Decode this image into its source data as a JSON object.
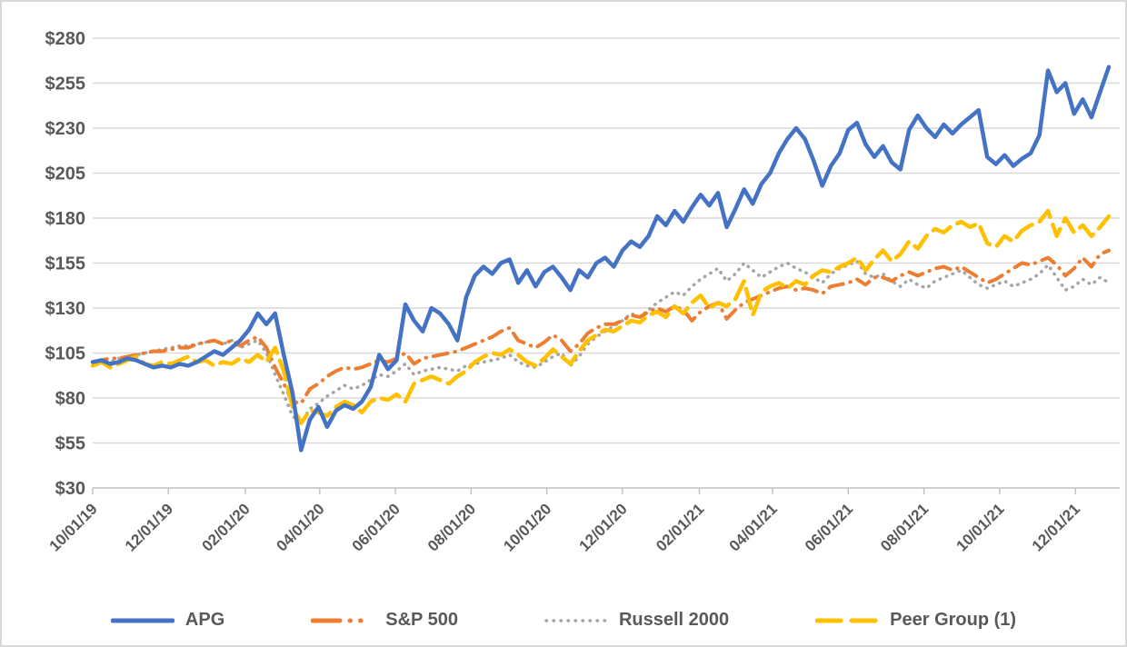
{
  "chart_data": {
    "type": "line",
    "title": "",
    "x_start_date": "10/01/19",
    "x_frequency": "weekly",
    "x_tick_labels": [
      "10/01/19",
      "12/01/19",
      "02/01/20",
      "04/01/20",
      "06/01/20",
      "08/01/20",
      "10/01/20",
      "12/01/20",
      "02/01/21",
      "04/01/21",
      "06/01/21",
      "08/01/21",
      "10/01/21",
      "12/01/21"
    ],
    "x_tick_day_offsets": [
      0,
      61,
      123,
      183,
      244,
      305,
      366,
      427,
      489,
      548,
      609,
      670,
      731,
      792
    ],
    "y_axis": {
      "min": 30,
      "max": 280,
      "step": 25,
      "prefix": "$",
      "tick_labels": [
        "$30",
        "$55",
        "$80",
        "$105",
        "$130",
        "$155",
        "$180",
        "$205",
        "$230",
        "$255",
        "$280"
      ],
      "tick_values": [
        30,
        55,
        80,
        105,
        130,
        155,
        180,
        205,
        230,
        255,
        280
      ]
    },
    "grid": "horizontal",
    "legend_position": "bottom",
    "axis_text_color": "#595959",
    "gridline_color": "#d9d9d9",
    "axis_line_color": "#bfbfbf",
    "series": [
      {
        "name": "APG",
        "color": "#4472C4",
        "style": "solid",
        "values": [
          100,
          101,
          99,
          100,
          102,
          101,
          99,
          97,
          98,
          97,
          99,
          98,
          100,
          103,
          106,
          104,
          108,
          112,
          118,
          127,
          121,
          127,
          104,
          83,
          51,
          68,
          75,
          64,
          73,
          76,
          74,
          78,
          86,
          104,
          96,
          101,
          132,
          123,
          117,
          130,
          127,
          121,
          112,
          136,
          148,
          153,
          149,
          155,
          157,
          144,
          151,
          142,
          150,
          153,
          147,
          140,
          151,
          147,
          155,
          158,
          153,
          162,
          167,
          164,
          170,
          181,
          176,
          184,
          178,
          186,
          193,
          187,
          194,
          175,
          185,
          196,
          188,
          199,
          205,
          216,
          224,
          230,
          224,
          212,
          198,
          209,
          216,
          229,
          233,
          221,
          214,
          220,
          211,
          207,
          229,
          237,
          230,
          225,
          232,
          227,
          232,
          236,
          240,
          214,
          210,
          215,
          209,
          213,
          216,
          226,
          262,
          250,
          255,
          238,
          246,
          236,
          250,
          264
        ]
      },
      {
        "name": "S&P 500",
        "color": "#ED7D31",
        "style": "dash-dot",
        "values": [
          100,
          101,
          102,
          102,
          103,
          104,
          105,
          106,
          106,
          107,
          108,
          108,
          110,
          111,
          112,
          110,
          112,
          109,
          112,
          114,
          108,
          97,
          88,
          78,
          77,
          85,
          88,
          92,
          95,
          97,
          96,
          97,
          99,
          101,
          100,
          102,
          105,
          99,
          102,
          103,
          104,
          105,
          106,
          108,
          110,
          112,
          114,
          117,
          119,
          112,
          110,
          108,
          111,
          115,
          112,
          106,
          110,
          116,
          119,
          121,
          121,
          123,
          126,
          125,
          128,
          130,
          128,
          131,
          129,
          123,
          128,
          131,
          133,
          124,
          129,
          133,
          135,
          137,
          139,
          141,
          142,
          140,
          141,
          140,
          138,
          142,
          143,
          144,
          146,
          143,
          147,
          147,
          145,
          148,
          150,
          148,
          150,
          152,
          153,
          151,
          153,
          150,
          147,
          144,
          146,
          149,
          152,
          155,
          154,
          156,
          158,
          154,
          148,
          152,
          158,
          153,
          160,
          162
        ]
      },
      {
        "name": "Russell 2000",
        "color": "#A5A5A5",
        "style": "dotted",
        "values": [
          100,
          101,
          100,
          102,
          103,
          104,
          105,
          106,
          107,
          108,
          109,
          109,
          110,
          111,
          112,
          110,
          112,
          108,
          110,
          112,
          105,
          93,
          82,
          70,
          66,
          74,
          77,
          81,
          84,
          87,
          85,
          87,
          90,
          93,
          92,
          95,
          99,
          93,
          95,
          96,
          97,
          96,
          95,
          98,
          99,
          100,
          101,
          102,
          104,
          100,
          98,
          97,
          100,
          103,
          105,
          98,
          103,
          110,
          114,
          117,
          120,
          123,
          127,
          125,
          129,
          133,
          136,
          139,
          137,
          142,
          146,
          149,
          152,
          145,
          149,
          155,
          151,
          147,
          150,
          153,
          155,
          152,
          150,
          147,
          144,
          149,
          152,
          154,
          156,
          149,
          147,
          149,
          145,
          142,
          146,
          143,
          141,
          145,
          147,
          149,
          151,
          147,
          143,
          141,
          143,
          145,
          142,
          144,
          146,
          149,
          154,
          147,
          140,
          142,
          146,
          143,
          147,
          144
        ]
      },
      {
        "name": "Peer Group (1)",
        "color": "#FFC000",
        "style": "dashed",
        "values": [
          98,
          100,
          97,
          99,
          101,
          103,
          99,
          98,
          100,
          99,
          101,
          103,
          100,
          101,
          98,
          100,
          99,
          102,
          100,
          104,
          100,
          108,
          95,
          75,
          66,
          73,
          72,
          70,
          75,
          78,
          76,
          72,
          78,
          80,
          79,
          82,
          78,
          88,
          90,
          92,
          90,
          88,
          92,
          95,
          100,
          103,
          105,
          104,
          107,
          104,
          100,
          98,
          102,
          107,
          103,
          99,
          106,
          112,
          115,
          118,
          117,
          120,
          123,
          122,
          126,
          128,
          125,
          131,
          127,
          133,
          137,
          130,
          133,
          131,
          135,
          145,
          126,
          139,
          142,
          144,
          141,
          145,
          143,
          148,
          151,
          150,
          153,
          155,
          158,
          151,
          157,
          162,
          156,
          160,
          167,
          163,
          170,
          174,
          172,
          176,
          178,
          175,
          177,
          166,
          164,
          170,
          167,
          173,
          176,
          178,
          184,
          170,
          180,
          172,
          176,
          170,
          175,
          181
        ]
      }
    ]
  }
}
